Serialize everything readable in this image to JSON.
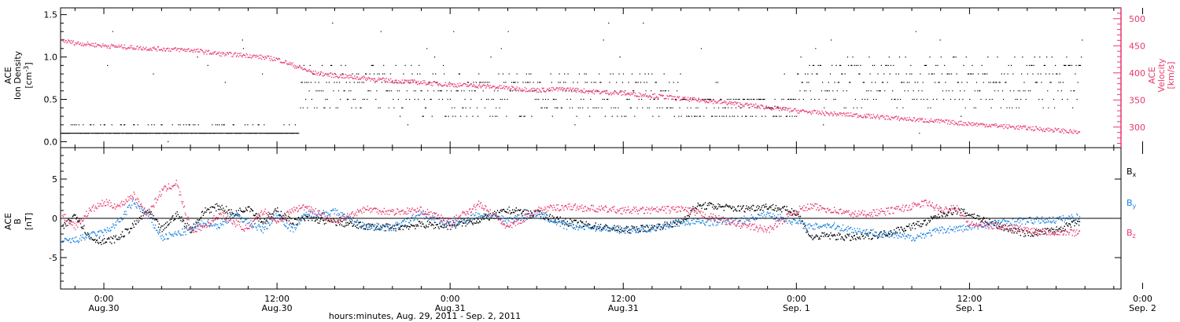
{
  "colors": {
    "density": "#000000",
    "velocity": "#e8386b",
    "bx": "#000000",
    "by": "#1a82e0",
    "bz": "#e8386b"
  },
  "chart_data": [
    {
      "type": "scatter",
      "panel": "top",
      "ylabel_lines": [
        "ACE",
        "Ion Density"
      ],
      "yunit_base": "[cm",
      "yunit_exp": "-3",
      "yunit_end": "]",
      "ylim": [
        -0.07,
        1.58
      ],
      "yticks": [
        0.0,
        0.5,
        1.0,
        1.5
      ],
      "yticklabels": [
        "0.0",
        "0.5",
        "1.0",
        "1.5"
      ],
      "right_ylabel_lines": [
        "ACE",
        "Velocity"
      ],
      "right_yunit": "[km/s]",
      "right_ylim": [
        262,
        520
      ],
      "right_yticks": [
        300,
        350,
        400,
        450,
        500
      ],
      "right_yticklabels": [
        "300",
        "350",
        "400",
        "450",
        "500"
      ],
      "velocity_series": [
        [
          -3.0,
          460
        ],
        [
          -2,
          455
        ],
        [
          0,
          450
        ],
        [
          3,
          445
        ],
        [
          6,
          442
        ],
        [
          8,
          435
        ],
        [
          10,
          432
        ],
        [
          12,
          425
        ],
        [
          13.5,
          410
        ],
        [
          14.5,
          400
        ],
        [
          16,
          395
        ],
        [
          18,
          390
        ],
        [
          20,
          385
        ],
        [
          22,
          382
        ],
        [
          24,
          378
        ],
        [
          26,
          376
        ],
        [
          28,
          372
        ],
        [
          30,
          368
        ],
        [
          32,
          370
        ],
        [
          34,
          365
        ],
        [
          36,
          362
        ],
        [
          38,
          358
        ],
        [
          40,
          352
        ],
        [
          42,
          348
        ],
        [
          44,
          342
        ],
        [
          46,
          336
        ],
        [
          48,
          330
        ],
        [
          50,
          325
        ],
        [
          52,
          322
        ],
        [
          54,
          318
        ],
        [
          56,
          314
        ],
        [
          58,
          310
        ],
        [
          60,
          306
        ],
        [
          62,
          302
        ],
        [
          64,
          298
        ],
        [
          66,
          294
        ],
        [
          67.5,
          290
        ]
      ],
      "density_levels": [
        0.0,
        0.1,
        0.2,
        0.3,
        0.4,
        0.5,
        0.6,
        0.7,
        0.8,
        0.9,
        1.0,
        1.1,
        1.2,
        1.3,
        1.4
      ]
    },
    {
      "type": "scatter",
      "panel": "bottom",
      "ylabel_lines": [
        "ACE",
        "B"
      ],
      "yunit": "[nT]",
      "ylim": [
        -9,
        9
      ],
      "yticks": [
        -5,
        0,
        5
      ],
      "yticklabels": [
        "-5",
        "0",
        "5"
      ],
      "legend_placement": "right",
      "series": [
        {
          "name": "B",
          "subscript": "x",
          "color": "#000000",
          "points": [
            [
              -3,
              -1.5
            ],
            [
              -2,
              0.5
            ],
            [
              -1,
              -2.5
            ],
            [
              0,
              -3.0
            ],
            [
              1,
              -2.5
            ],
            [
              2,
              -1.0
            ],
            [
              3,
              1.0
            ],
            [
              4,
              -1.5
            ],
            [
              5,
              0.5
            ],
            [
              6,
              -1.5
            ],
            [
              7,
              1.0
            ],
            [
              8,
              1.5
            ],
            [
              9,
              0.5
            ],
            [
              10,
              1.5
            ],
            [
              11,
              -0.5
            ],
            [
              12,
              1.0
            ],
            [
              13,
              -0.5
            ],
            [
              14,
              0.0
            ],
            [
              16,
              -0.5
            ],
            [
              18,
              -1.0
            ],
            [
              20,
              -1.2
            ],
            [
              22,
              -0.8
            ],
            [
              24,
              -1.0
            ],
            [
              26,
              -0.2
            ],
            [
              28,
              1.0
            ],
            [
              30,
              0.6
            ],
            [
              32,
              -0.5
            ],
            [
              34,
              -1.0
            ],
            [
              36,
              -1.5
            ],
            [
              38,
              -1.2
            ],
            [
              40,
              -0.5
            ],
            [
              41,
              1.5
            ],
            [
              42,
              1.6
            ],
            [
              44,
              1.2
            ],
            [
              46,
              1.5
            ],
            [
              48,
              0.8
            ],
            [
              49,
              -2.5
            ],
            [
              50,
              -2.2
            ],
            [
              52,
              -2.5
            ],
            [
              54,
              -2.0
            ],
            [
              56,
              -1.0
            ],
            [
              57,
              -0.5
            ],
            [
              58,
              0.5
            ],
            [
              59,
              1.0
            ],
            [
              60,
              0.5
            ],
            [
              62,
              -1.0
            ],
            [
              64,
              -2.0
            ],
            [
              66,
              -1.5
            ],
            [
              67.5,
              -0.5
            ]
          ]
        },
        {
          "name": "B",
          "subscript": "y",
          "color": "#1a82e0",
          "points": [
            [
              -3,
              -3.0
            ],
            [
              -2,
              -2.8
            ],
            [
              -1,
              -2.2
            ],
            [
              0,
              -1.8
            ],
            [
              1,
              -0.5
            ],
            [
              2,
              2.0
            ],
            [
              3,
              0.5
            ],
            [
              4,
              -2.5
            ],
            [
              5,
              -2.0
            ],
            [
              6,
              -1.5
            ],
            [
              7,
              -0.5
            ],
            [
              8,
              -1.0
            ],
            [
              9,
              0.5
            ],
            [
              10,
              -0.5
            ],
            [
              11,
              -1.5
            ],
            [
              12,
              0.5
            ],
            [
              13,
              -1.5
            ],
            [
              14,
              0.5
            ],
            [
              16,
              0.8
            ],
            [
              18,
              -1.0
            ],
            [
              20,
              -1.2
            ],
            [
              22,
              0.5
            ],
            [
              24,
              -0.8
            ],
            [
              26,
              0.5
            ],
            [
              28,
              -0.2
            ],
            [
              30,
              0.5
            ],
            [
              32,
              -1.0
            ],
            [
              34,
              -1.2
            ],
            [
              36,
              -1.5
            ],
            [
              38,
              -1.3
            ],
            [
              40,
              -0.5
            ],
            [
              42,
              -0.5
            ],
            [
              44,
              -0.3
            ],
            [
              46,
              0.5
            ],
            [
              48,
              -0.5
            ],
            [
              49,
              -1.2
            ],
            [
              50,
              -0.8
            ],
            [
              52,
              -1.5
            ],
            [
              54,
              -2.0
            ],
            [
              56,
              -2.5
            ],
            [
              58,
              -1.5
            ],
            [
              60,
              -1.2
            ],
            [
              62,
              -0.5
            ],
            [
              64,
              -0.3
            ],
            [
              66,
              -0.2
            ],
            [
              67.5,
              0.2
            ]
          ]
        },
        {
          "name": "B",
          "subscript": "z",
          "color": "#e8386b",
          "points": [
            [
              -3,
              0.5
            ],
            [
              -2,
              -1.0
            ],
            [
              -1,
              1.0
            ],
            [
              0,
              2.0
            ],
            [
              1,
              1.5
            ],
            [
              2,
              3.0
            ],
            [
              3,
              0.5
            ],
            [
              4,
              3.5
            ],
            [
              5,
              4.5
            ],
            [
              6,
              -1.5
            ],
            [
              7,
              -1.0
            ],
            [
              8,
              0.5
            ],
            [
              9,
              -0.5
            ],
            [
              10,
              -1.5
            ],
            [
              11,
              1.0
            ],
            [
              12,
              -0.5
            ],
            [
              13,
              1.0
            ],
            [
              14,
              1.5
            ],
            [
              16,
              -0.5
            ],
            [
              18,
              1.2
            ],
            [
              20,
              0.8
            ],
            [
              22,
              1.0
            ],
            [
              24,
              -0.5
            ],
            [
              26,
              1.8
            ],
            [
              28,
              -1.2
            ],
            [
              30,
              1.0
            ],
            [
              32,
              1.5
            ],
            [
              34,
              1.2
            ],
            [
              36,
              1.0
            ],
            [
              38,
              1.0
            ],
            [
              40,
              1.2
            ],
            [
              42,
              0.2
            ],
            [
              44,
              -0.8
            ],
            [
              46,
              -1.5
            ],
            [
              48,
              1.0
            ],
            [
              49,
              1.5
            ],
            [
              50,
              1.2
            ],
            [
              52,
              0.5
            ],
            [
              54,
              0.8
            ],
            [
              56,
              1.5
            ],
            [
              57,
              2.0
            ],
            [
              58,
              1.0
            ],
            [
              59,
              1.5
            ],
            [
              60,
              -0.8
            ],
            [
              62,
              -1.0
            ],
            [
              64,
              -1.5
            ],
            [
              66,
              -1.8
            ],
            [
              67.5,
              -1.8
            ]
          ]
        }
      ]
    }
  ],
  "x_axis": {
    "xlim": [
      -3.0,
      70.5
    ],
    "xlabel": "hours:minutes, Aug. 29, 2011 - Sep.  2, 2011",
    "ticks": [
      {
        "h": 0,
        "time": "0:00",
        "date": "Aug.30"
      },
      {
        "h": 12,
        "time": "12:00",
        "date": "Aug.30"
      },
      {
        "h": 24,
        "time": "0:00",
        "date": "Aug.31"
      },
      {
        "h": 36,
        "time": "12:00",
        "date": "Aug.31"
      },
      {
        "h": 48,
        "time": "0:00",
        "date": "Sep. 1"
      },
      {
        "h": 60,
        "time": "12:00",
        "date": "Sep. 1"
      },
      {
        "h": 72,
        "time": "0:00",
        "date": "Sep. 2"
      }
    ]
  }
}
